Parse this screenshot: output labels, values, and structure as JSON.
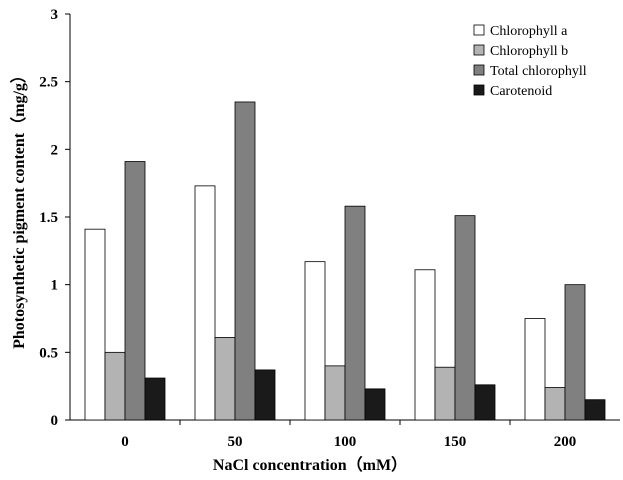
{
  "chart_data": {
    "type": "bar",
    "categories": [
      "0",
      "50",
      "100",
      "150",
      "200"
    ],
    "series": [
      {
        "name": "Chlorophyll a",
        "values": [
          1.41,
          1.73,
          1.17,
          1.11,
          0.75
        ],
        "color": "#ffffff"
      },
      {
        "name": "Chlorophyll b",
        "values": [
          0.5,
          0.61,
          0.4,
          0.39,
          0.24
        ],
        "color": "#b3b3b3"
      },
      {
        "name": "Total chlorophyll",
        "values": [
          1.91,
          2.35,
          1.58,
          1.51,
          1.0
        ],
        "color": "#808080"
      },
      {
        "name": "Carotenoid",
        "values": [
          0.31,
          0.37,
          0.23,
          0.26,
          0.15
        ],
        "color": "#1a1a1a"
      }
    ],
    "title": "",
    "xlabel": "NaCl concentration（mM）",
    "ylabel": "Photosynthetic pigment content（mg/g）",
    "ylim": [
      0,
      3
    ],
    "yticks": [
      "0",
      "0.5",
      "1",
      "1.5",
      "2",
      "2.5",
      "3"
    ],
    "grid": false,
    "legend_position": "top-right"
  }
}
